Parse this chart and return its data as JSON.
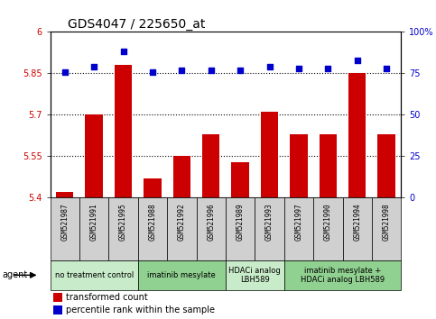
{
  "title": "GDS4047 / 225650_at",
  "samples": [
    "GSM521987",
    "GSM521991",
    "GSM521995",
    "GSM521988",
    "GSM521992",
    "GSM521996",
    "GSM521989",
    "GSM521993",
    "GSM521997",
    "GSM521990",
    "GSM521994",
    "GSM521998"
  ],
  "bar_values": [
    5.42,
    5.7,
    5.88,
    5.47,
    5.55,
    5.63,
    5.53,
    5.71,
    5.63,
    5.63,
    5.85,
    5.63
  ],
  "dot_values": [
    76,
    79,
    88,
    76,
    77,
    77,
    77,
    79,
    78,
    78,
    83,
    78
  ],
  "ylim_left": [
    5.4,
    6.0
  ],
  "ylim_right": [
    0,
    100
  ],
  "yticks_left": [
    5.4,
    5.55,
    5.7,
    5.85,
    6.0
  ],
  "yticks_right": [
    0,
    25,
    50,
    75,
    100
  ],
  "ytick_labels_left": [
    "5.4",
    "5.55",
    "5.7",
    "5.85",
    "6"
  ],
  "ytick_labels_right": [
    "0",
    "25",
    "50",
    "75",
    "100%"
  ],
  "hlines": [
    5.55,
    5.7,
    5.85
  ],
  "groups": [
    {
      "label": "no treatment control",
      "start": 0,
      "end": 3,
      "color": "#c8ebc9"
    },
    {
      "label": "imatinib mesylate",
      "start": 3,
      "end": 6,
      "color": "#90d090"
    },
    {
      "label": "HDACi analog\nLBH589",
      "start": 6,
      "end": 8,
      "color": "#c8ebc9"
    },
    {
      "label": "imatinib mesylate +\nHDACi analog LBH589",
      "start": 8,
      "end": 12,
      "color": "#90d090"
    }
  ],
  "bar_color": "#cc0000",
  "dot_color": "#0000cc",
  "agent_label": "agent",
  "bar_width": 0.6,
  "tick_label_color_left": "#cc0000",
  "tick_label_color_right": "#0000cc",
  "sample_box_color": "#d0d0d0",
  "legend_bar_label": "transformed count",
  "legend_dot_label": "percentile rank within the sample",
  "title_fontsize": 10,
  "axis_fontsize": 7,
  "sample_fontsize": 5.5,
  "group_fontsize": 6,
  "legend_fontsize": 7
}
